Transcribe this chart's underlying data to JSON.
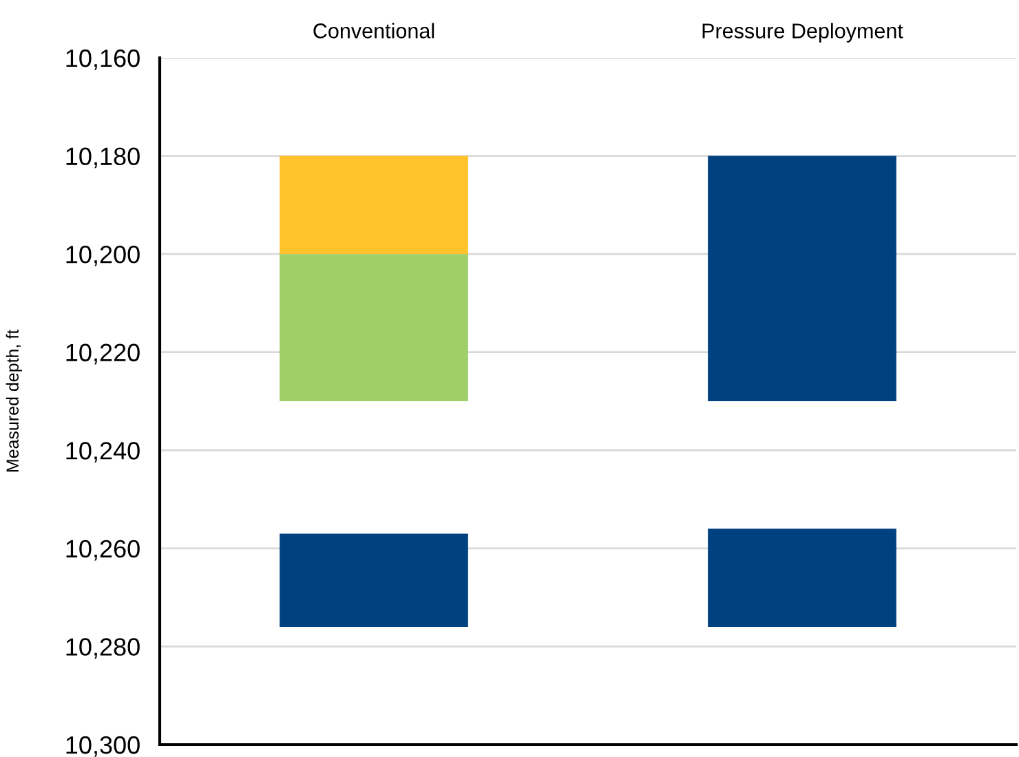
{
  "chart_data": {
    "type": "bar",
    "categories": [
      "Conventional",
      "Pressure Deployment"
    ],
    "ylabel": "Measured depth, ft",
    "series": [
      {
        "color": "#ffc22a",
        "base": [
          10180,
          null
        ],
        "values": [
          20,
          null
        ]
      },
      {
        "color": "#a0cf67",
        "base": [
          10200,
          null
        ],
        "values": [
          30,
          null
        ]
      },
      {
        "color": "#004280",
        "base": [
          null,
          10180
        ],
        "values": [
          null,
          50
        ]
      },
      {
        "color": "#004280",
        "base": [
          10257,
          10256
        ],
        "values": [
          19,
          20
        ]
      }
    ],
    "ylim": [
      10300,
      10160
    ],
    "yticks": [
      {
        "value": 10160,
        "label": "10,160"
      },
      {
        "value": 10180,
        "label": "10,180"
      },
      {
        "value": 10200,
        "label": "10,200"
      },
      {
        "value": 10220,
        "label": "10,220"
      },
      {
        "value": 10240,
        "label": "10,240"
      },
      {
        "value": 10260,
        "label": "10,260"
      },
      {
        "value": 10280,
        "label": "10,280"
      },
      {
        "value": 10300,
        "label": "10,300"
      }
    ],
    "grid": "y"
  }
}
